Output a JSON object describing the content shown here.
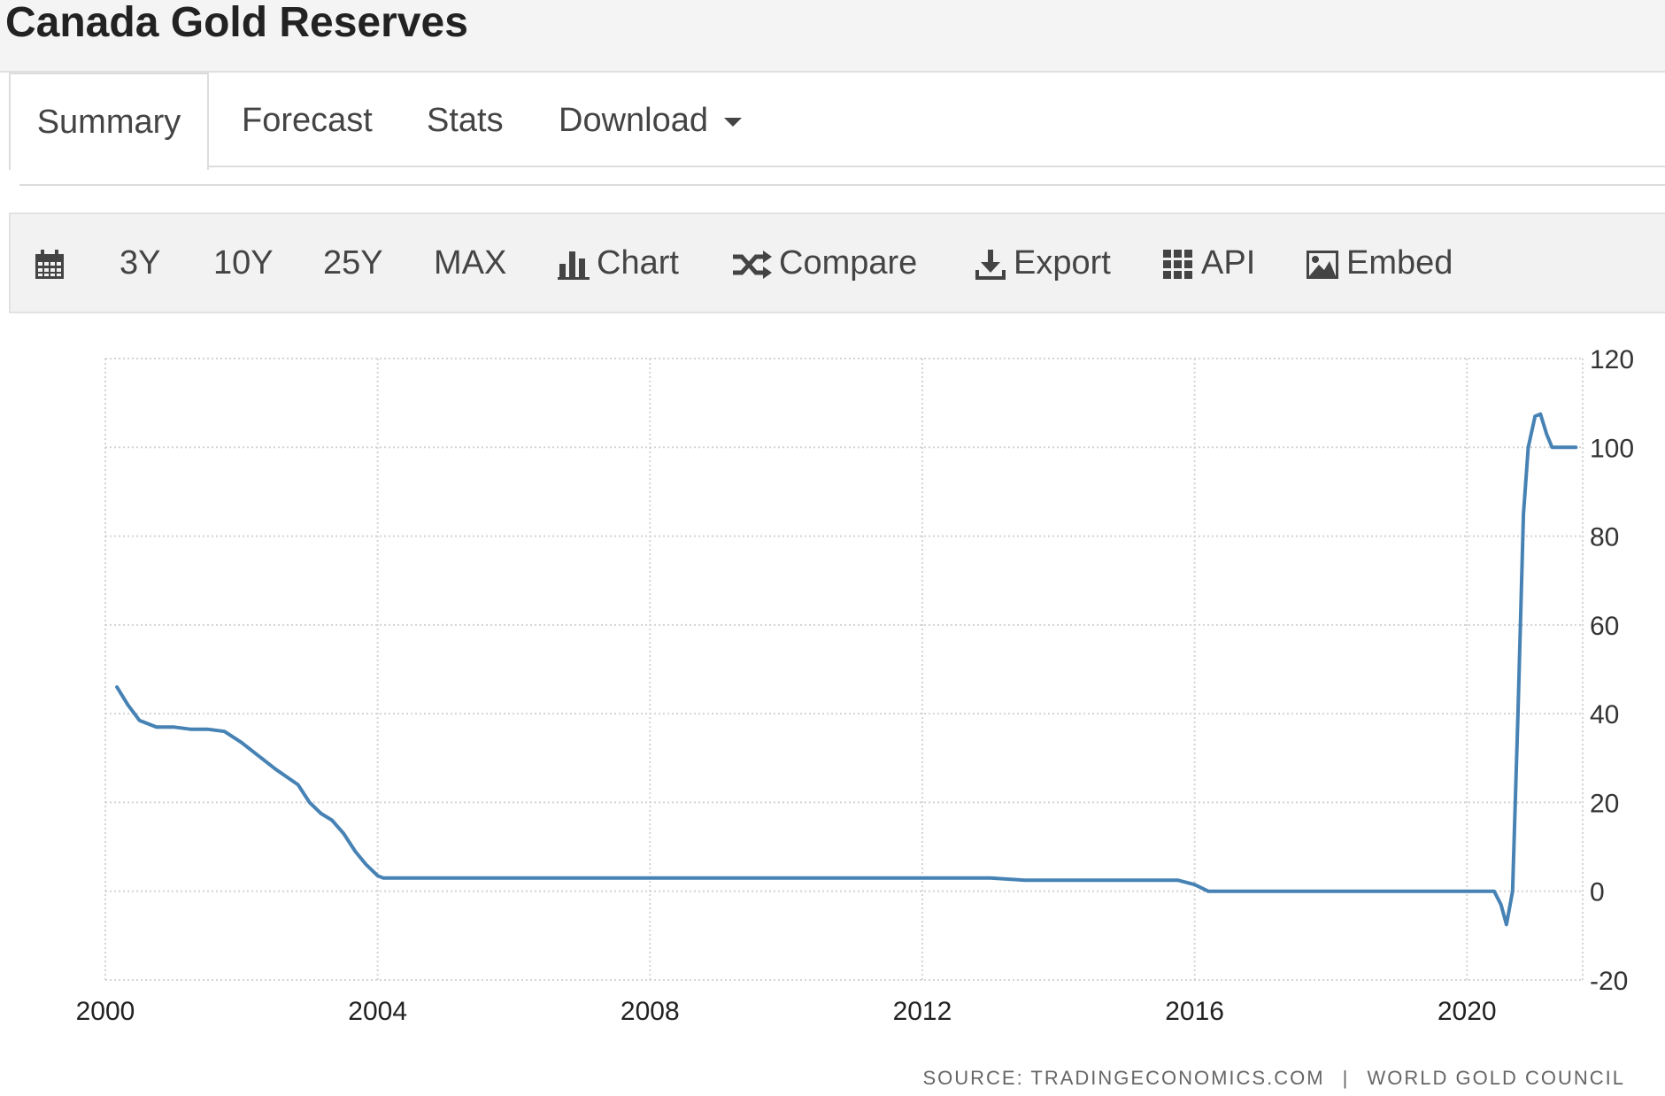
{
  "page": {
    "title": "Canada Gold Reserves"
  },
  "tabs": [
    {
      "label": "Summary",
      "active": true
    },
    {
      "label": "Forecast"
    },
    {
      "label": "Stats"
    },
    {
      "label": "Download",
      "icon": "caret-down-icon"
    }
  ],
  "toolbar": {
    "items": [
      {
        "icon": "calendar-icon",
        "label": ""
      },
      {
        "label": "3Y"
      },
      {
        "label": "10Y"
      },
      {
        "label": "25Y"
      },
      {
        "label": "MAX"
      },
      {
        "icon": "bar-chart-icon",
        "label": "Chart"
      },
      {
        "icon": "shuffle-icon",
        "label": "Compare"
      },
      {
        "icon": "download-icon",
        "label": "Export"
      },
      {
        "icon": "grid-icon",
        "label": "API"
      },
      {
        "icon": "image-icon",
        "label": "Embed"
      }
    ]
  },
  "chart_data": {
    "type": "line",
    "title": "",
    "xlabel": "",
    "ylabel": "",
    "xlim": [
      2000,
      2021.7
    ],
    "ylim": [
      -20,
      120
    ],
    "x_ticks": [
      "2000",
      "2004",
      "2008",
      "2012",
      "2016",
      "2020"
    ],
    "y_ticks": [
      "120",
      "100",
      "80",
      "60",
      "40",
      "20",
      "0",
      "-20"
    ],
    "grid": true,
    "series": [
      {
        "color": "#4682b4",
        "points": [
          [
            2000.17,
            46.0
          ],
          [
            2000.33,
            42.0
          ],
          [
            2000.5,
            38.5
          ],
          [
            2000.75,
            37.0
          ],
          [
            2001.0,
            37.0
          ],
          [
            2001.25,
            36.5
          ],
          [
            2001.5,
            36.5
          ],
          [
            2001.75,
            36.0
          ],
          [
            2002.0,
            33.5
          ],
          [
            2002.25,
            30.5
          ],
          [
            2002.5,
            27.5
          ],
          [
            2002.83,
            24.0
          ],
          [
            2003.0,
            20.0
          ],
          [
            2003.17,
            17.5
          ],
          [
            2003.33,
            16.0
          ],
          [
            2003.5,
            13.0
          ],
          [
            2003.67,
            9.0
          ],
          [
            2003.83,
            6.0
          ],
          [
            2004.0,
            3.5
          ],
          [
            2004.08,
            3.0
          ],
          [
            2006.0,
            3.0
          ],
          [
            2008.0,
            3.0
          ],
          [
            2010.0,
            3.0
          ],
          [
            2012.0,
            3.0
          ],
          [
            2013.0,
            3.0
          ],
          [
            2013.5,
            2.5
          ],
          [
            2015.0,
            2.5
          ],
          [
            2015.75,
            2.5
          ],
          [
            2016.0,
            1.5
          ],
          [
            2016.2,
            0.0
          ],
          [
            2017.0,
            0.0
          ],
          [
            2018.0,
            0.0
          ],
          [
            2019.0,
            0.0
          ],
          [
            2020.0,
            0.0
          ],
          [
            2020.4,
            0.0
          ],
          [
            2020.5,
            -3.0
          ],
          [
            2020.58,
            -7.5
          ],
          [
            2020.67,
            0.0
          ],
          [
            2020.75,
            40.0
          ],
          [
            2020.83,
            85.0
          ],
          [
            2020.9,
            100.0
          ],
          [
            2021.0,
            107.0
          ],
          [
            2021.08,
            107.5
          ],
          [
            2021.17,
            103.0
          ],
          [
            2021.25,
            100.0
          ],
          [
            2021.5,
            100.0
          ],
          [
            2021.6,
            100.0
          ]
        ]
      }
    ],
    "source": {
      "label": "SOURCE:",
      "primary": "TRADINGECONOMICS.COM",
      "separator": "|",
      "secondary": "WORLD GOLD COUNCIL"
    }
  }
}
